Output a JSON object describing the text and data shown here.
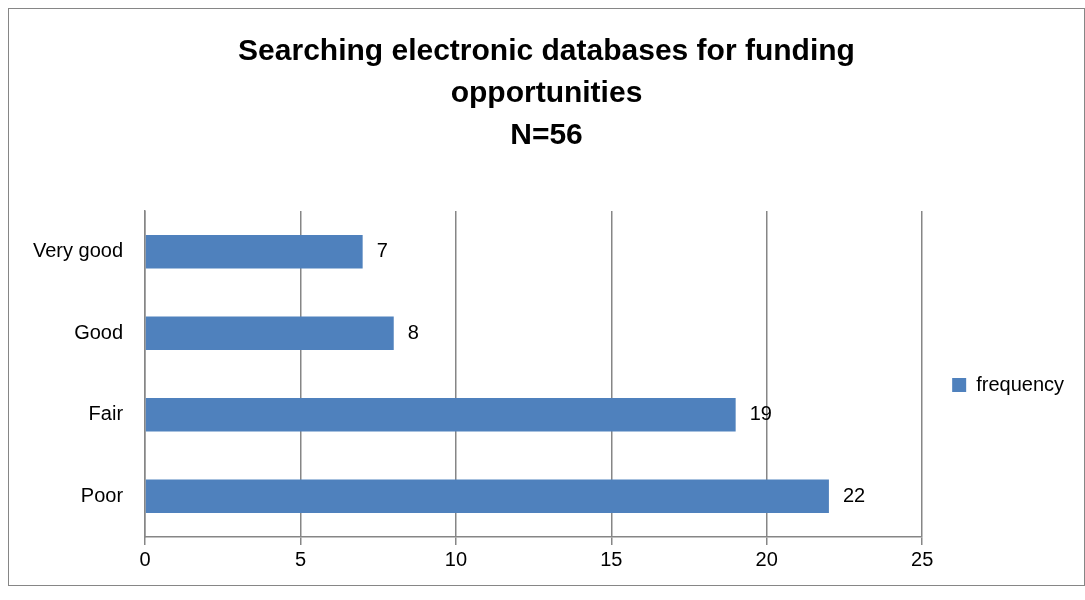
{
  "chart_data": {
    "type": "bar",
    "orientation": "horizontal",
    "title": "Searching electronic databases for funding opportunities",
    "subtitle": "N=56",
    "categories": [
      "Very good",
      "Good",
      "Fair",
      "Poor"
    ],
    "series": [
      {
        "name": "frequency",
        "color": "#4f81bd",
        "values": [
          7,
          8,
          19,
          22
        ]
      }
    ],
    "xlim": [
      0,
      25
    ],
    "xticks": [
      0,
      5,
      10,
      15,
      20,
      25
    ],
    "grid": "x",
    "legend": "right",
    "data_labels": true
  }
}
